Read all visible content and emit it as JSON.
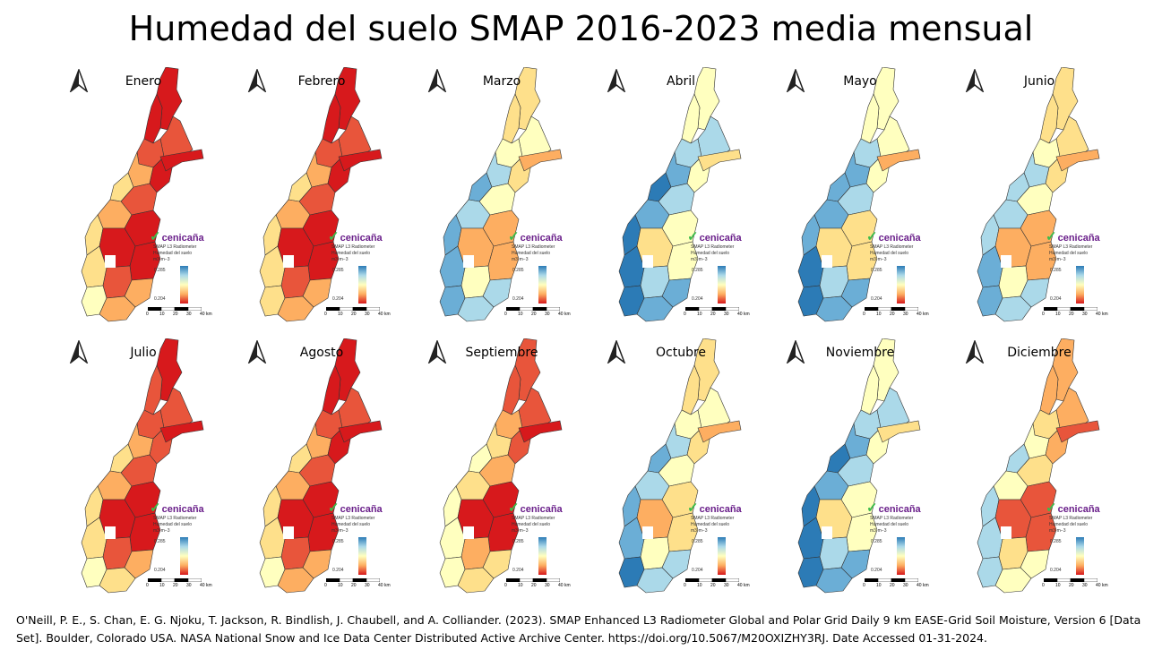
{
  "title": "Humedad del suelo SMAP 2016-2023 media mensual",
  "legend": {
    "logo": "cenicaña",
    "source": "SMAP L3 Radiometer",
    "variable": "Humedad del suelo",
    "units": "m3·m−3",
    "max": "0.285",
    "min": "0.204"
  },
  "scale_bar": {
    "labels": [
      "0",
      "10",
      "20",
      "30",
      "40 km"
    ]
  },
  "months": [
    {
      "name": "Enero",
      "moisture": 0.05
    },
    {
      "name": "Febrero",
      "moisture": 0.03
    },
    {
      "name": "Marzo",
      "moisture": 0.45
    },
    {
      "name": "Abril",
      "moisture": 0.62
    },
    {
      "name": "Mayo",
      "moisture": 0.55
    },
    {
      "name": "Junio",
      "moisture": 0.42
    },
    {
      "name": "Julio",
      "moisture": 0.08
    },
    {
      "name": "Agosto",
      "moisture": 0.05
    },
    {
      "name": "Septiembre",
      "moisture": 0.15
    },
    {
      "name": "Octubre",
      "moisture": 0.48
    },
    {
      "name": "Noviembre",
      "moisture": 0.6
    },
    {
      "name": "Diciembre",
      "moisture": 0.3
    }
  ],
  "citation": "O'Neill, P. E., S. Chan, E. G. Njoku, T. Jackson, R. Bindlish, J. Chaubell, and A. Colliander. (2023). SMAP Enhanced L3 Radiometer Global and Polar Grid Daily 9 km EASE-Grid Soil Moisture, Version 6 [Data Set]. Boulder, Colorado USA. NASA National Snow and Ice Data Center Distributed Active Archive Center. https://doi.org/10.5067/M20OXIZHY3RJ. Date Accessed 01-31-2024."
}
